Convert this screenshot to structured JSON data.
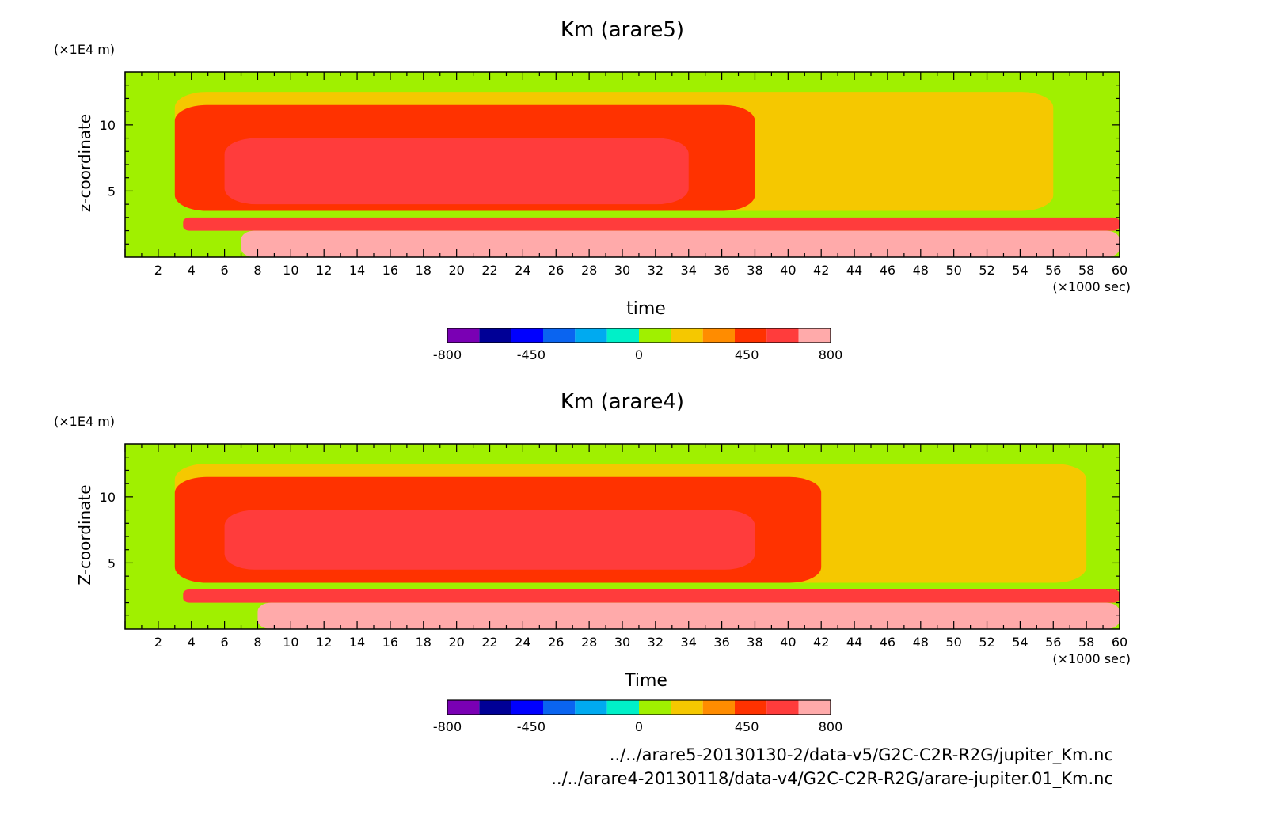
{
  "chart_data": [
    {
      "type": "heatmap",
      "title": "Km (arare5)",
      "xlabel": "time",
      "ylabel": "z-coordinate",
      "x_unit": "(×1000 sec)",
      "y_unit": "(×1E4 m)",
      "xlim": [
        0,
        60
      ],
      "ylim": [
        0,
        14
      ],
      "x_ticks": [
        2,
        4,
        6,
        8,
        10,
        12,
        14,
        16,
        18,
        20,
        22,
        24,
        26,
        28,
        30,
        32,
        34,
        36,
        38,
        40,
        42,
        44,
        46,
        48,
        50,
        52,
        54,
        56,
        58,
        60
      ],
      "y_ticks": [
        5,
        10
      ],
      "colorbar_ticks": [
        -800,
        -450,
        0,
        450,
        800
      ],
      "regions": [
        {
          "level": 800,
          "t": [
            7,
            60
          ],
          "z": [
            0,
            2
          ],
          "note": "lowest layer, pink"
        },
        {
          "level": 650,
          "t": [
            3.5,
            60
          ],
          "z": [
            2,
            3
          ],
          "note": "red band"
        },
        {
          "level": 650,
          "t": [
            6,
            34
          ],
          "z": [
            4,
            9
          ],
          "note": "red core"
        },
        {
          "level": 450,
          "t": [
            3,
            38
          ],
          "z": [
            3.5,
            11.5
          ]
        },
        {
          "level": 200,
          "t": [
            3,
            56
          ],
          "z": [
            3.5,
            12.5
          ]
        },
        {
          "level": 100,
          "t": [
            0,
            60
          ],
          "z": [
            0,
            14
          ],
          "note": "background"
        }
      ]
    },
    {
      "type": "heatmap",
      "title": "Km (arare4)",
      "xlabel": "Time",
      "ylabel": "Z-coordinate",
      "x_unit": "(×1000 sec)",
      "y_unit": "(×1E4 m)",
      "xlim": [
        0,
        60
      ],
      "ylim": [
        0,
        14
      ],
      "x_ticks": [
        2,
        4,
        6,
        8,
        10,
        12,
        14,
        16,
        18,
        20,
        22,
        24,
        26,
        28,
        30,
        32,
        34,
        36,
        38,
        40,
        42,
        44,
        46,
        48,
        50,
        52,
        54,
        56,
        58,
        60
      ],
      "y_ticks": [
        5,
        10
      ],
      "colorbar_ticks": [
        -800,
        -450,
        0,
        450,
        800
      ],
      "regions": [
        {
          "level": 800,
          "t": [
            8,
            60
          ],
          "z": [
            0,
            2
          ],
          "note": "lowest layer, pink"
        },
        {
          "level": 650,
          "t": [
            3.5,
            60
          ],
          "z": [
            2,
            3
          ],
          "note": "red band"
        },
        {
          "level": 650,
          "t": [
            6,
            38
          ],
          "z": [
            4.5,
            9
          ]
        },
        {
          "level": 450,
          "t": [
            3,
            42
          ],
          "z": [
            3.5,
            11.5
          ]
        },
        {
          "level": 200,
          "t": [
            3,
            58
          ],
          "z": [
            3.5,
            12.5
          ]
        },
        {
          "level": 100,
          "t": [
            0,
            60
          ],
          "z": [
            0,
            14
          ],
          "note": "background"
        }
      ]
    }
  ],
  "colorbar": {
    "colors": [
      "#7a00b4",
      "#000096",
      "#0000ff",
      "#0a64f0",
      "#00aaf0",
      "#00f0c8",
      "#a0f000",
      "#f5c800",
      "#ff8c00",
      "#ff3200",
      "#ff3c3c",
      "#ffaaaa"
    ]
  },
  "footer": {
    "line1": "../../arare5-20130130-2/data-v5/G2C-C2R-R2G/jupiter_Km.nc",
    "line2": "../../arare4-20130118/data-v4/G2C-C2R-R2G/arare-jupiter.01_Km.nc"
  }
}
